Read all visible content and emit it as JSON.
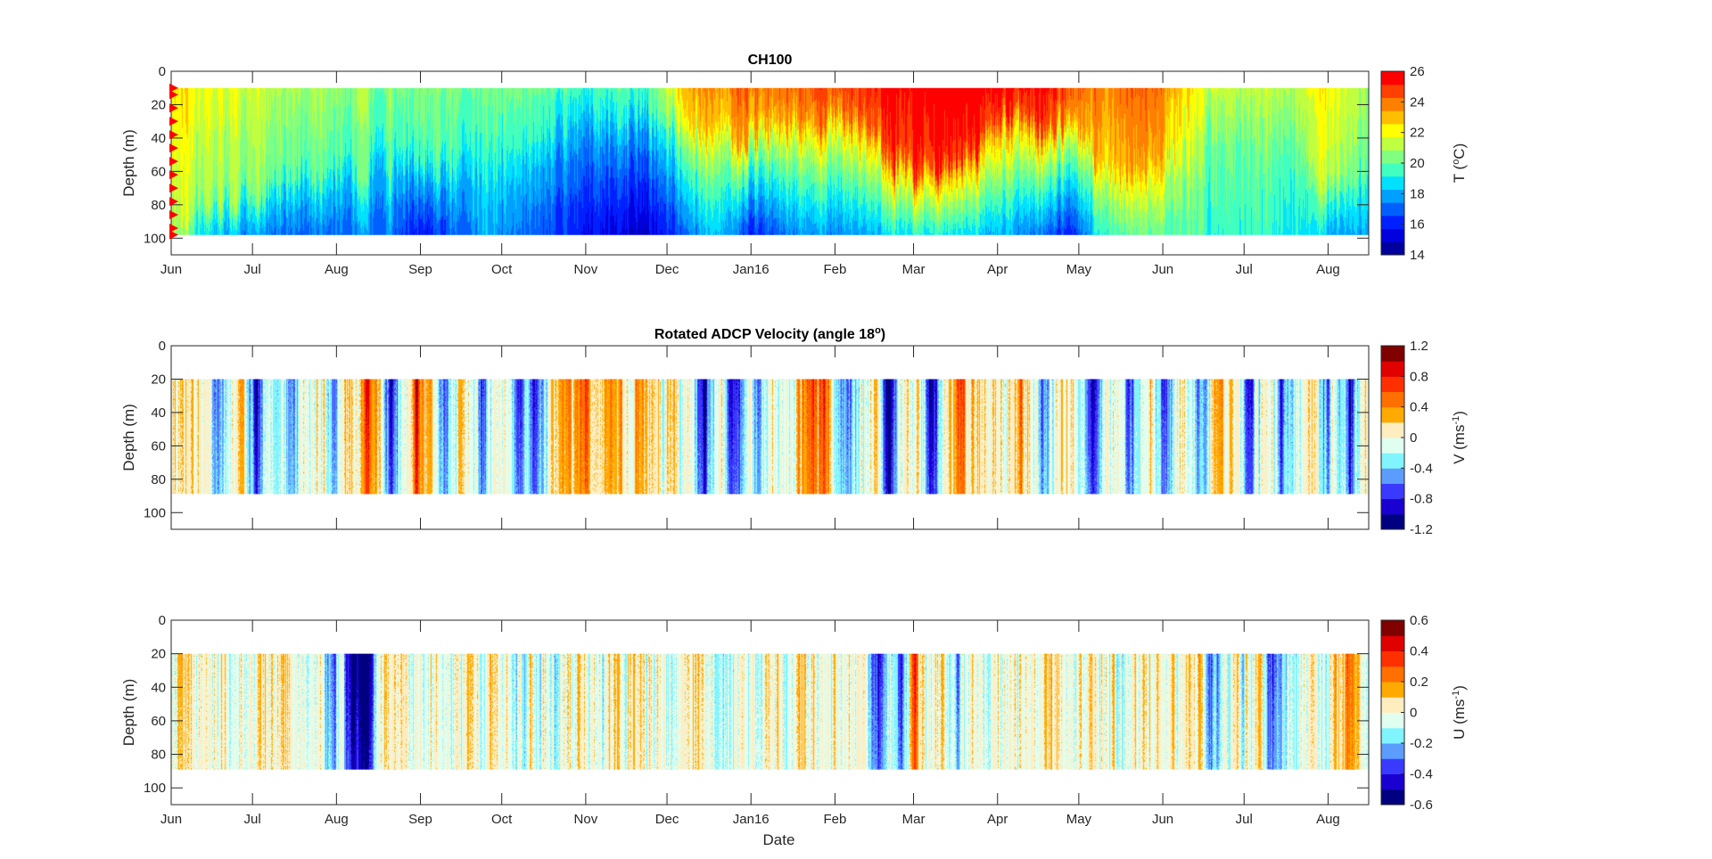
{
  "chart_data": [
    {
      "type": "heatmap",
      "name": "temperature",
      "title": "CH100",
      "title_superscript": "",
      "xlabel": "",
      "ylabel": "Depth (m)",
      "ylim": [
        0,
        110
      ],
      "yticks": [
        0,
        20,
        40,
        60,
        80,
        100
      ],
      "x_range": [
        "2015-06-01",
        "2016-08-16"
      ],
      "xticks": [
        "Jun",
        "Jul",
        "Aug",
        "Sep",
        "Oct",
        "Nov",
        "Dec",
        "Jan16",
        "Feb",
        "Mar",
        "Apr",
        "May",
        "Jun",
        "Jul",
        "Aug"
      ],
      "data_depth_range": [
        10,
        98
      ],
      "colorbar": {
        "label": "T (°C)",
        "label_main": "T (",
        "label_sup": "o",
        "label_end": "C)",
        "range": [
          14,
          26
        ],
        "ticks": [
          "26",
          "24",
          "22",
          "20",
          "18",
          "16",
          "14"
        ],
        "levels": [
          "#00009f",
          "#0000df",
          "#0020ff",
          "#0060ff",
          "#00a0ff",
          "#00e0ff",
          "#40ffbf",
          "#80ff80",
          "#bfff40",
          "#ffff00",
          "#ffbf00",
          "#ff8000",
          "#ff4000",
          "#ff0000"
        ]
      },
      "instrument_markers": {
        "color": "#ff0000",
        "depths_m": [
          10,
          14,
          22,
          30,
          38,
          46,
          54,
          62,
          70,
          78,
          86,
          94,
          98
        ]
      },
      "profiles_note": "surface and bottom temperature (°C) plus mixed-layer depth (m) at month marks",
      "profiles": [
        {
          "t": 0.0,
          "surface": 22.5,
          "bottom": 21.0,
          "mld": 80
        },
        {
          "t": 0.03,
          "surface": 22.0,
          "bottom": 18.5,
          "mld": 78
        },
        {
          "t": 0.07,
          "surface": 21.5,
          "bottom": 17.5,
          "mld": 70
        },
        {
          "t": 0.12,
          "surface": 21.0,
          "bottom": 17.0,
          "mld": 60
        },
        {
          "t": 0.18,
          "surface": 20.8,
          "bottom": 17.5,
          "mld": 55
        },
        {
          "t": 0.21,
          "surface": 20.5,
          "bottom": 15.5,
          "mld": 50
        },
        {
          "t": 0.26,
          "surface": 20.5,
          "bottom": 18.0,
          "mld": 55
        },
        {
          "t": 0.3,
          "surface": 20.5,
          "bottom": 17.0,
          "mld": 45
        },
        {
          "t": 0.34,
          "surface": 20.0,
          "bottom": 16.0,
          "mld": 30
        },
        {
          "t": 0.38,
          "surface": 20.0,
          "bottom": 15.0,
          "mld": 25
        },
        {
          "t": 0.4,
          "surface": 20.3,
          "bottom": 15.0,
          "mld": 25
        },
        {
          "t": 0.43,
          "surface": 23.5,
          "bottom": 17.0,
          "mld": 30
        },
        {
          "t": 0.46,
          "surface": 24.0,
          "bottom": 18.5,
          "mld": 35
        },
        {
          "t": 0.48,
          "surface": 24.5,
          "bottom": 16.0,
          "mld": 40
        },
        {
          "t": 0.52,
          "surface": 24.5,
          "bottom": 17.5,
          "mld": 30
        },
        {
          "t": 0.56,
          "surface": 25.0,
          "bottom": 17.5,
          "mld": 25
        },
        {
          "t": 0.58,
          "surface": 25.5,
          "bottom": 18.0,
          "mld": 35
        },
        {
          "t": 0.62,
          "surface": 26.0,
          "bottom": 19.0,
          "mld": 60
        },
        {
          "t": 0.66,
          "surface": 26.0,
          "bottom": 18.5,
          "mld": 50
        },
        {
          "t": 0.7,
          "surface": 26.0,
          "bottom": 18.0,
          "mld": 25
        },
        {
          "t": 0.73,
          "surface": 25.8,
          "bottom": 17.0,
          "mld": 35
        },
        {
          "t": 0.75,
          "surface": 25.0,
          "bottom": 16.0,
          "mld": 30
        },
        {
          "t": 0.78,
          "surface": 24.0,
          "bottom": 19.5,
          "mld": 60
        },
        {
          "t": 0.82,
          "surface": 24.5,
          "bottom": 20.0,
          "mld": 55
        },
        {
          "t": 0.86,
          "surface": 22.0,
          "bottom": 19.5,
          "mld": 40
        },
        {
          "t": 0.9,
          "surface": 21.5,
          "bottom": 19.5,
          "mld": 40
        },
        {
          "t": 0.94,
          "surface": 21.5,
          "bottom": 19.0,
          "mld": 45
        },
        {
          "t": 0.97,
          "surface": 22.5,
          "bottom": 18.0,
          "mld": 70
        },
        {
          "t": 1.0,
          "surface": 21.0,
          "bottom": 18.0,
          "mld": 60
        }
      ]
    },
    {
      "type": "heatmap",
      "name": "velocity-v",
      "title": "Rotated ADCP Velocity (angle 18",
      "title_superscript": "o",
      "title_end": ")",
      "xlabel": "",
      "ylabel": "Depth (m)",
      "ylim": [
        0,
        110
      ],
      "yticks": [
        0,
        20,
        40,
        60,
        80,
        100
      ],
      "x_range": [
        "2015-06-01",
        "2016-08-16"
      ],
      "xticks": [
        "",
        "",
        "",
        "",
        "",
        "",
        "",
        "",
        "",
        "",
        "",
        "",
        "",
        "",
        ""
      ],
      "data_depth_range": [
        20,
        89
      ],
      "colorbar": {
        "label": "V (ms-1)",
        "label_main": "V (ms",
        "label_sup": "-1",
        "label_end": ")",
        "range": [
          -1.2,
          1.2
        ],
        "ticks": [
          "1.2",
          "0.8",
          "0.4",
          "0",
          "-0.4",
          "-0.8",
          "-1.2"
        ],
        "levels": [
          "#000080",
          "#1a00d0",
          "#3a3aff",
          "#5c9cff",
          "#80f4ff",
          "#e0fff0",
          "#ffedc0",
          "#ffaa00",
          "#ff7000",
          "#ff3000",
          "#e00000",
          "#800000"
        ]
      },
      "events_note": "strong southward (negative) and northward (positive) velocity episodes, as fraction of time axis",
      "events": [
        {
          "t": 0.04,
          "v": -0.7
        },
        {
          "t": 0.07,
          "v": -0.8
        },
        {
          "t": 0.1,
          "v": -0.6
        },
        {
          "t": 0.135,
          "v": -0.5
        },
        {
          "t": 0.165,
          "v": 0.65
        },
        {
          "t": 0.185,
          "v": -0.75
        },
        {
          "t": 0.205,
          "v": 0.7
        },
        {
          "t": 0.23,
          "v": -0.5
        },
        {
          "t": 0.26,
          "v": -0.65
        },
        {
          "t": 0.29,
          "v": -0.75
        },
        {
          "t": 0.305,
          "v": -0.95
        },
        {
          "t": 0.33,
          "v": 0.5
        },
        {
          "t": 0.345,
          "v": 0.55
        },
        {
          "t": 0.37,
          "v": 0.35
        },
        {
          "t": 0.39,
          "v": 0.4
        },
        {
          "t": 0.42,
          "v": 0.3
        },
        {
          "t": 0.445,
          "v": -1.05
        },
        {
          "t": 0.47,
          "v": -0.8
        },
        {
          "t": 0.49,
          "v": -0.7
        },
        {
          "t": 0.53,
          "v": 0.5
        },
        {
          "t": 0.555,
          "v": -0.6
        },
        {
          "t": 0.535,
          "v": 0.45
        },
        {
          "t": 0.545,
          "v": 0.4
        },
        {
          "t": 0.57,
          "v": -0.6
        },
        {
          "t": 0.55,
          "v": 0.35
        },
        {
          "t": 0.6,
          "v": -1.1
        },
        {
          "t": 0.635,
          "v": -1.05
        },
        {
          "t": 0.66,
          "v": 0.75
        },
        {
          "t": 0.68,
          "v": 0.3
        },
        {
          "t": 0.71,
          "v": 0.4
        },
        {
          "t": 0.73,
          "v": -0.6
        },
        {
          "t": 0.77,
          "v": -0.85
        },
        {
          "t": 0.8,
          "v": -0.8
        },
        {
          "t": 0.83,
          "v": -0.85
        },
        {
          "t": 0.86,
          "v": -0.6
        },
        {
          "t": 0.875,
          "v": 0.4
        },
        {
          "t": 0.9,
          "v": -0.6
        },
        {
          "t": 0.93,
          "v": -0.7
        },
        {
          "t": 0.965,
          "v": -0.6
        },
        {
          "t": 0.985,
          "v": -0.85
        }
      ]
    },
    {
      "type": "heatmap",
      "name": "velocity-u",
      "title": "",
      "xlabel": "Date",
      "ylabel": "Depth (m)",
      "ylim": [
        0,
        110
      ],
      "yticks": [
        0,
        20,
        40,
        60,
        80,
        100
      ],
      "x_range": [
        "2015-06-01",
        "2016-08-16"
      ],
      "xticks": [
        "Jun",
        "Jul",
        "Aug",
        "Sep",
        "Oct",
        "Nov",
        "Dec",
        "Jan16",
        "Feb",
        "Mar",
        "Apr",
        "May",
        "Jun",
        "Jul",
        "Aug"
      ],
      "data_depth_range": [
        20,
        89
      ],
      "colorbar": {
        "label": "U (ms-1)",
        "label_main": "U (ms",
        "label_sup": "-1",
        "label_end": ")",
        "range": [
          -0.6,
          0.6
        ],
        "ticks": [
          "0.6",
          "0.4",
          "0.2",
          "0",
          "-0.2",
          "-0.4",
          "-0.6"
        ],
        "levels": [
          "#000080",
          "#1a00d0",
          "#3a3aff",
          "#5c9cff",
          "#80f4ff",
          "#e0fff0",
          "#ffedc0",
          "#ffaa00",
          "#ff7000",
          "#ff3000",
          "#e00000",
          "#800000"
        ]
      },
      "events": [
        {
          "t": 0.135,
          "v": -0.45
        },
        {
          "t": 0.14,
          "v": 0.3
        },
        {
          "t": 0.16,
          "v": -0.35
        },
        {
          "t": 0.15,
          "v": 0.3
        },
        {
          "t": 0.148,
          "v": -0.45
        },
        {
          "t": 0.152,
          "v": -0.55
        },
        {
          "t": 0.163,
          "v": -0.5
        },
        {
          "t": 0.59,
          "v": -0.4
        },
        {
          "t": 0.61,
          "v": -0.5
        },
        {
          "t": 0.62,
          "v": 0.3
        },
        {
          "t": 0.655,
          "v": -0.25
        },
        {
          "t": 0.87,
          "v": -0.35
        },
        {
          "t": 0.92,
          "v": -0.4
        },
        {
          "t": 0.985,
          "v": 0.3
        }
      ]
    }
  ]
}
